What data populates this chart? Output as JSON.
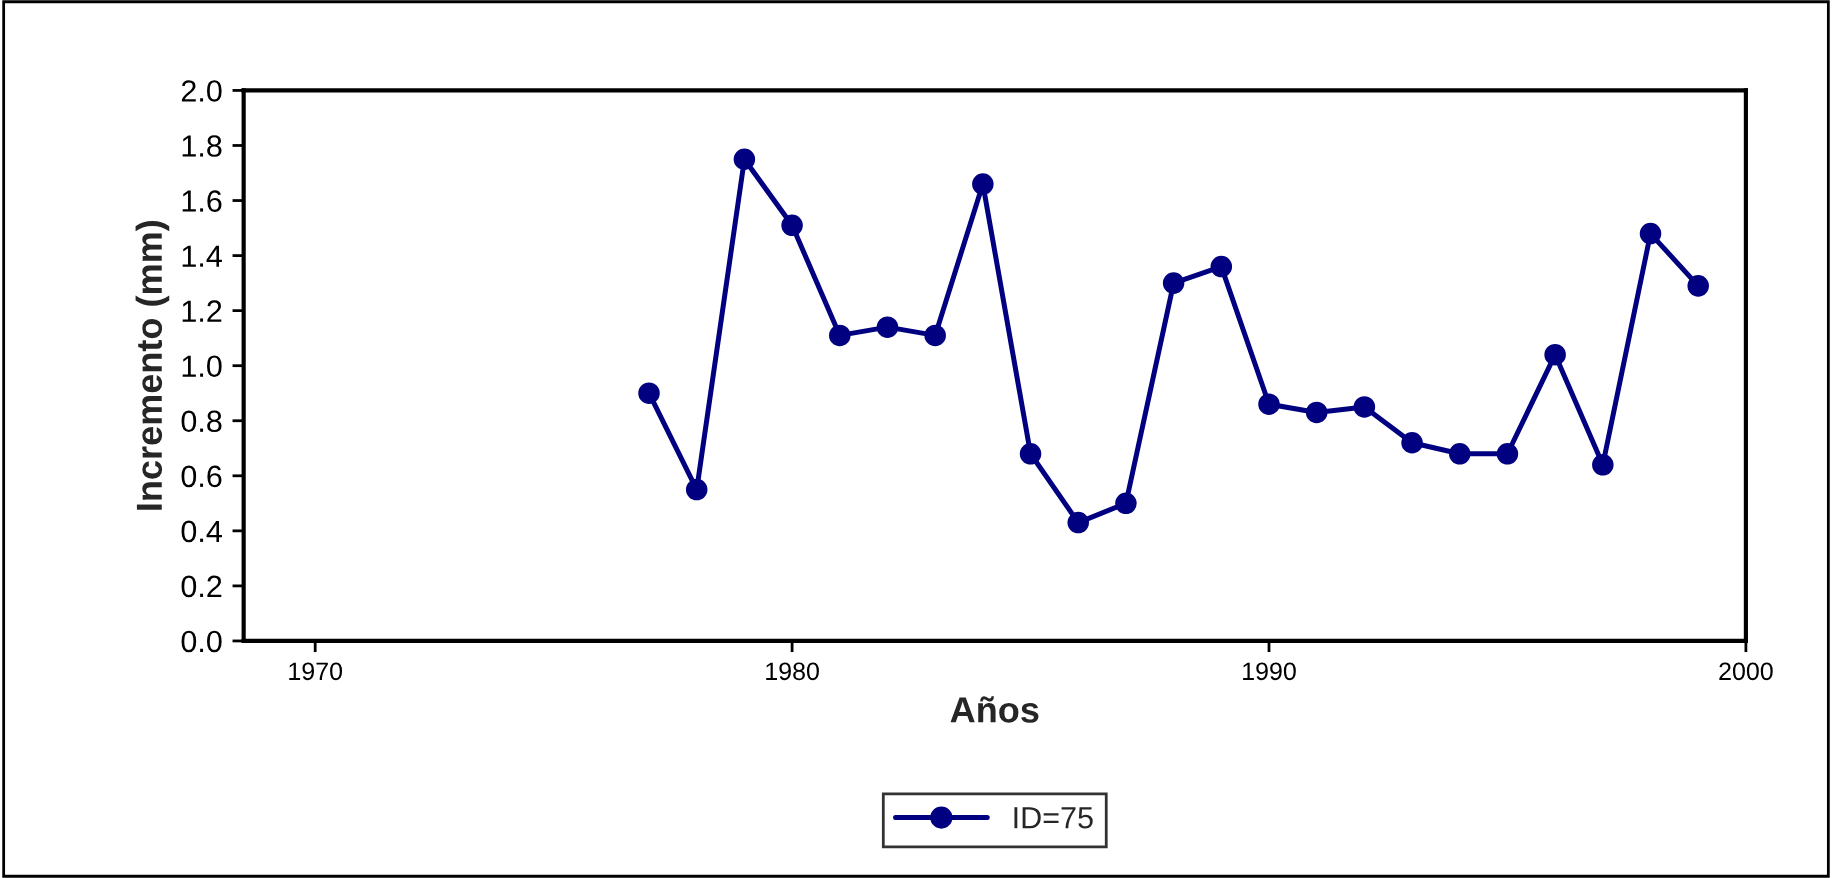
{
  "chart_data": {
    "type": "line",
    "xlabel": "Años",
    "ylabel": "Incremento (mm)",
    "x": [
      1977,
      1978,
      1979,
      1980,
      1981,
      1982,
      1983,
      1984,
      1985,
      1986,
      1987,
      1988,
      1989,
      1990,
      1991,
      1992,
      1993,
      1994,
      1995,
      1996,
      1997,
      1998,
      1999
    ],
    "series": [
      {
        "name": "ID=75",
        "color": "#000080",
        "values": [
          0.9,
          0.55,
          1.75,
          1.51,
          1.11,
          1.14,
          1.11,
          1.66,
          0.68,
          0.43,
          0.5,
          1.3,
          1.36,
          0.86,
          0.83,
          0.85,
          0.72,
          0.68,
          0.68,
          1.04,
          0.64,
          1.48,
          1.29
        ]
      }
    ],
    "xlim": [
      1968.5,
      2000
    ],
    "xticks": [
      1970,
      1980,
      1990,
      2000
    ],
    "ylim": [
      0,
      2
    ],
    "yticks": [
      {
        "value": 0,
        "label": "0.0"
      },
      {
        "value": 0.2,
        "label": "0.2"
      },
      {
        "value": 0.4,
        "label": "0.4"
      },
      {
        "value": 0.6,
        "label": "0.6"
      },
      {
        "value": 0.8,
        "label": "0.8"
      },
      {
        "value": 1,
        "label": "1.0"
      },
      {
        "value": 1.2,
        "label": "1.2"
      },
      {
        "value": 1.4,
        "label": "1.4"
      },
      {
        "value": 1.6,
        "label": "1.6"
      },
      {
        "value": 1.8,
        "label": "1.8"
      },
      {
        "value": 2,
        "label": "2.0"
      }
    ],
    "grid": false,
    "legend": "bottom",
    "marker": "circle",
    "line_style": "solid"
  }
}
